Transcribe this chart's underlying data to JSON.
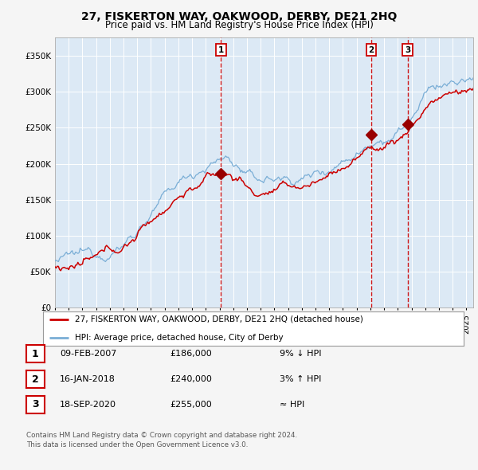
{
  "title": "27, FISKERTON WAY, OAKWOOD, DERBY, DE21 2HQ",
  "subtitle": "Price paid vs. HM Land Registry's House Price Index (HPI)",
  "ylim": [
    0,
    375000
  ],
  "xlim_start": 1995.0,
  "xlim_end": 2025.5,
  "yticks": [
    0,
    50000,
    100000,
    150000,
    200000,
    250000,
    300000,
    350000
  ],
  "ytick_labels": [
    "£0",
    "£50K",
    "£100K",
    "£150K",
    "£200K",
    "£250K",
    "£300K",
    "£350K"
  ],
  "xticks": [
    1995,
    1996,
    1997,
    1998,
    1999,
    2000,
    2001,
    2002,
    2003,
    2004,
    2005,
    2006,
    2007,
    2008,
    2009,
    2010,
    2011,
    2012,
    2013,
    2014,
    2015,
    2016,
    2017,
    2018,
    2019,
    2020,
    2021,
    2022,
    2023,
    2024,
    2025
  ],
  "fig_bg_color": "#f5f5f5",
  "plot_bg_color": "#dce9f5",
  "grid_color": "#ffffff",
  "hpi_line_color": "#7aaed6",
  "price_line_color": "#cc0000",
  "vline_color": "#cc0000",
  "marker_color": "#990000",
  "sale_dates": [
    2007.11,
    2018.05,
    2020.72
  ],
  "sale_prices": [
    186000,
    240000,
    255000
  ],
  "sale_labels": [
    "1",
    "2",
    "3"
  ],
  "legend_price_label": "27, FISKERTON WAY, OAKWOOD, DERBY, DE21 2HQ (detached house)",
  "legend_hpi_label": "HPI: Average price, detached house, City of Derby",
  "table_rows": [
    {
      "num": "1",
      "date": "09-FEB-2007",
      "price": "£186,000",
      "hpi": "9% ↓ HPI"
    },
    {
      "num": "2",
      "date": "16-JAN-2018",
      "price": "£240,000",
      "hpi": "3% ↑ HPI"
    },
    {
      "num": "3",
      "date": "18-SEP-2020",
      "price": "£255,000",
      "hpi": "≈ HPI"
    }
  ],
  "footer": "Contains HM Land Registry data © Crown copyright and database right 2024.\nThis data is licensed under the Open Government Licence v3.0."
}
